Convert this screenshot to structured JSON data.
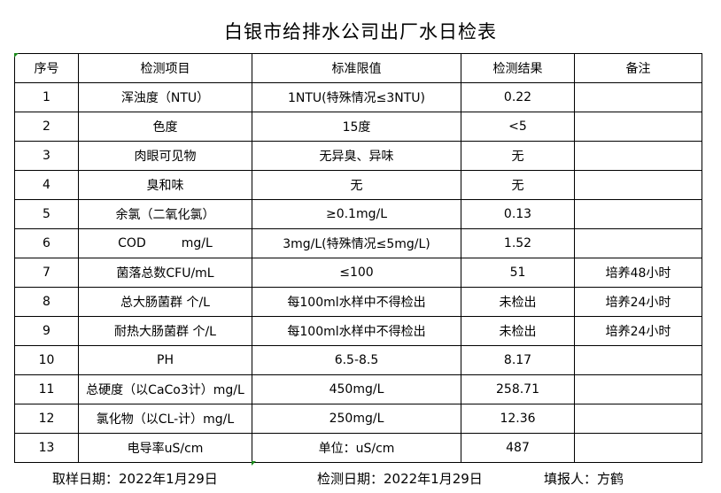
{
  "title": "白银市给排水公司出厂水日检表",
  "table": {
    "headers": [
      "序号",
      "检测项目",
      "标准限值",
      "检测结果",
      "备注"
    ],
    "rows": [
      [
        "1",
        "浑浊度（NTU）",
        "1NTU(特殊情况≤3NTU)",
        "0.22",
        ""
      ],
      [
        "2",
        "色度",
        "15度",
        "<5",
        ""
      ],
      [
        "3",
        "肉眼可见物",
        "无异臭、异味",
        "无",
        ""
      ],
      [
        "4",
        "臭和味",
        "无",
        "无",
        ""
      ],
      [
        "5",
        "余氯（二氧化氯）",
        "≥0.1mg/L",
        "0.13",
        ""
      ],
      [
        "6",
        "COD         mg/L",
        "3mg/L(特殊情况≤5mg/L)",
        "1.52",
        ""
      ],
      [
        "7",
        "菌落总数CFU/mL",
        "≤100",
        "51",
        "培养48小时"
      ],
      [
        "8",
        "总大肠菌群 个/L",
        "每100ml水样中不得检出",
        "未检出",
        "培养24小时"
      ],
      [
        "9",
        "耐热大肠菌群 个/L",
        "每100ml水样中不得检出",
        "未检出",
        "培养24小时"
      ],
      [
        "10",
        "PH",
        "6.5-8.5",
        "8.17",
        ""
      ],
      [
        "11",
        "总硬度（以CaCo3计）mg/L",
        "450mg/L",
        "258.71",
        ""
      ],
      [
        "12",
        "氯化物（以CL-计）mg/L",
        "250mg/L",
        "12.36",
        ""
      ],
      [
        "13",
        "电导率uS/cm",
        "单位：uS/cm",
        "487",
        ""
      ]
    ]
  },
  "footer": {
    "sample_date": "取样日期：2022年1月29日",
    "test_date": "检测日期：2022年1月29日",
    "reporter": "填报人：方鹤"
  },
  "colors": {
    "cell_marker": "#1a8a1a"
  }
}
